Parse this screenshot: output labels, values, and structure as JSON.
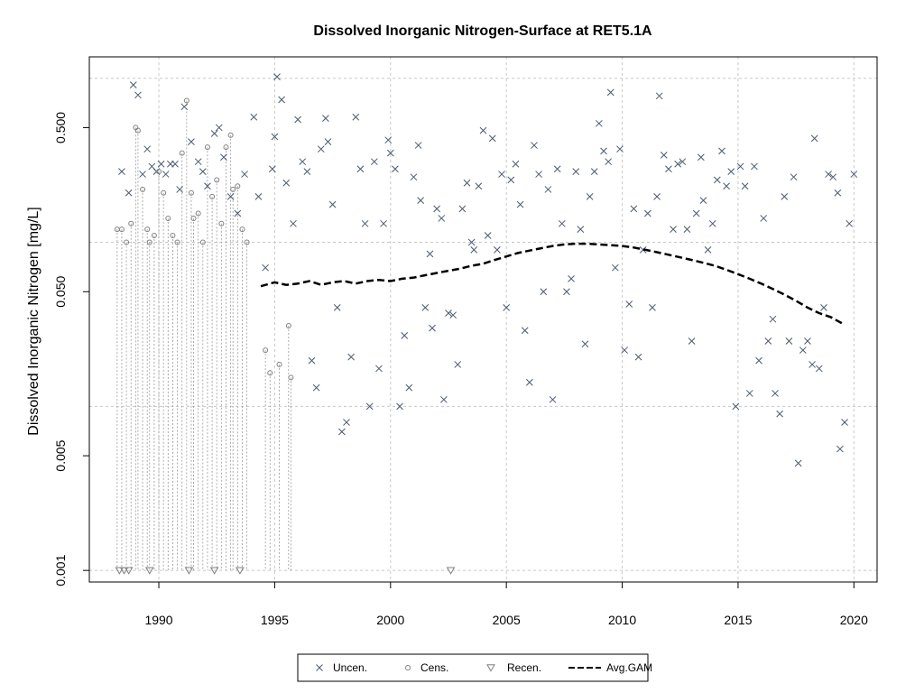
{
  "chart_data": {
    "type": "scatter",
    "title": "Dissolved Inorganic Nitrogen-Surface at RET5.1A",
    "xlabel": "",
    "ylabel": "Dissolved Inorganic Nitrogen [mg/L]",
    "y_scale": "log",
    "xlim": [
      1987.0,
      2021.0
    ],
    "ylim": [
      0.00085,
      1.35
    ],
    "x_ticks": [
      1990,
      1995,
      2000,
      2005,
      2010,
      2015,
      2020
    ],
    "x_tick_labels": [
      "1990",
      "1995",
      "2000",
      "2005",
      "2010",
      "2015",
      "2020"
    ],
    "y_ticks": [
      0.001,
      0.005,
      0.05,
      0.5
    ],
    "y_tick_labels": [
      "0.001",
      "0.005",
      "0.050",
      "0.500"
    ],
    "y_grid_values": [
      0.001,
      0.01,
      0.1,
      1.0
    ],
    "x_grid_values": [
      1990,
      1995,
      2000,
      2005,
      2010,
      2015,
      2020
    ],
    "grid": true,
    "legend_position": "bottom-center",
    "legend": [
      "Uncen.",
      "Cens.",
      "Recen.",
      "Avg.GAM"
    ],
    "series": [
      {
        "name": "Uncen.",
        "marker": "x",
        "color": "#4a5a70",
        "points": [
          [
            1988.4,
            0.27
          ],
          [
            1988.7,
            0.2
          ],
          [
            1988.9,
            0.91
          ],
          [
            1989.1,
            0.79
          ],
          [
            1989.3,
            0.26
          ],
          [
            1989.5,
            0.37
          ],
          [
            1989.7,
            0.29
          ],
          [
            1989.9,
            0.27
          ],
          [
            1990.1,
            0.3
          ],
          [
            1990.3,
            0.26
          ],
          [
            1990.5,
            0.3
          ],
          [
            1990.7,
            0.3
          ],
          [
            1990.9,
            0.21
          ],
          [
            1991.1,
            0.67
          ],
          [
            1991.4,
            0.41
          ],
          [
            1991.7,
            0.31
          ],
          [
            1991.9,
            0.27
          ],
          [
            1992.1,
            0.22
          ],
          [
            1992.4,
            0.46
          ],
          [
            1992.6,
            0.5
          ],
          [
            1992.8,
            0.33
          ],
          [
            1993.1,
            0.19
          ],
          [
            1993.4,
            0.15
          ],
          [
            1993.7,
            0.26
          ],
          [
            1994.1,
            0.58
          ],
          [
            1994.3,
            0.19
          ],
          [
            1994.6,
            0.07
          ],
          [
            1994.9,
            0.28
          ],
          [
            1995.0,
            0.44
          ],
          [
            1995.1,
            1.02
          ],
          [
            1995.3,
            0.74
          ],
          [
            1995.5,
            0.23
          ],
          [
            1995.8,
            0.13
          ],
          [
            1996.0,
            0.56
          ],
          [
            1996.2,
            0.31
          ],
          [
            1996.4,
            0.27
          ],
          [
            1996.6,
            0.019
          ],
          [
            1996.8,
            0.013
          ],
          [
            1997.0,
            0.37
          ],
          [
            1997.2,
            0.57
          ],
          [
            1997.3,
            0.41
          ],
          [
            1997.5,
            0.17
          ],
          [
            1997.7,
            0.04
          ],
          [
            1997.9,
            0.007
          ],
          [
            1998.1,
            0.008
          ],
          [
            1998.3,
            0.02
          ],
          [
            1998.5,
            0.58
          ],
          [
            1998.7,
            0.28
          ],
          [
            1998.9,
            0.13
          ],
          [
            1999.1,
            0.01
          ],
          [
            1999.3,
            0.31
          ],
          [
            1999.5,
            0.017
          ],
          [
            1999.7,
            0.13
          ],
          [
            1999.9,
            0.42
          ],
          [
            2000.0,
            0.35
          ],
          [
            2000.2,
            0.28
          ],
          [
            2000.4,
            0.01
          ],
          [
            2000.6,
            0.027
          ],
          [
            2000.8,
            0.013
          ],
          [
            2001.0,
            0.25
          ],
          [
            2001.2,
            0.39
          ],
          [
            2001.3,
            0.18
          ],
          [
            2001.5,
            0.04
          ],
          [
            2001.7,
            0.085
          ],
          [
            2001.8,
            0.03
          ],
          [
            2002.0,
            0.16
          ],
          [
            2002.2,
            0.14
          ],
          [
            2002.3,
            0.011
          ],
          [
            2002.5,
            0.037
          ],
          [
            2002.7,
            0.036
          ],
          [
            2002.9,
            0.018
          ],
          [
            2003.1,
            0.16
          ],
          [
            2003.3,
            0.23
          ],
          [
            2003.5,
            0.1
          ],
          [
            2003.6,
            0.09
          ],
          [
            2003.8,
            0.22
          ],
          [
            2004.0,
            0.48
          ],
          [
            2004.2,
            0.11
          ],
          [
            2004.4,
            0.43
          ],
          [
            2004.6,
            0.09
          ],
          [
            2004.8,
            0.26
          ],
          [
            2005.0,
            0.04
          ],
          [
            2005.2,
            0.24
          ],
          [
            2005.4,
            0.3
          ],
          [
            2005.6,
            0.17
          ],
          [
            2005.8,
            0.029
          ],
          [
            2006.0,
            0.014
          ],
          [
            2006.2,
            0.39
          ],
          [
            2006.4,
            0.26
          ],
          [
            2006.6,
            0.05
          ],
          [
            2006.8,
            0.21
          ],
          [
            2007.0,
            0.011
          ],
          [
            2007.2,
            0.28
          ],
          [
            2007.4,
            0.13
          ],
          [
            2007.6,
            0.05
          ],
          [
            2007.8,
            0.06
          ],
          [
            2008.0,
            0.27
          ],
          [
            2008.2,
            0.12
          ],
          [
            2008.4,
            0.024
          ],
          [
            2008.6,
            0.19
          ],
          [
            2008.8,
            0.27
          ],
          [
            2009.0,
            0.53
          ],
          [
            2009.2,
            0.36
          ],
          [
            2009.4,
            0.31
          ],
          [
            2009.5,
            0.82
          ],
          [
            2009.7,
            0.07
          ],
          [
            2009.9,
            0.37
          ],
          [
            2010.1,
            0.022
          ],
          [
            2010.3,
            0.042
          ],
          [
            2010.5,
            0.16
          ],
          [
            2010.7,
            0.02
          ],
          [
            2010.9,
            0.09
          ],
          [
            2011.1,
            0.15
          ],
          [
            2011.3,
            0.04
          ],
          [
            2011.5,
            0.19
          ],
          [
            2011.6,
            0.78
          ],
          [
            2011.8,
            0.34
          ],
          [
            2012.0,
            0.28
          ],
          [
            2012.2,
            0.12
          ],
          [
            2012.4,
            0.3
          ],
          [
            2012.6,
            0.31
          ],
          [
            2012.8,
            0.12
          ],
          [
            2013.0,
            0.025
          ],
          [
            2013.2,
            0.15
          ],
          [
            2013.4,
            0.33
          ],
          [
            2013.5,
            0.18
          ],
          [
            2013.7,
            0.09
          ],
          [
            2013.9,
            0.13
          ],
          [
            2014.1,
            0.24
          ],
          [
            2014.3,
            0.36
          ],
          [
            2014.5,
            0.22
          ],
          [
            2014.7,
            0.27
          ],
          [
            2014.9,
            0.01
          ],
          [
            2015.1,
            0.29
          ],
          [
            2015.3,
            0.22
          ],
          [
            2015.5,
            0.012
          ],
          [
            2015.7,
            0.29
          ],
          [
            2015.9,
            0.019
          ],
          [
            2016.1,
            0.14
          ],
          [
            2016.3,
            0.025
          ],
          [
            2016.5,
            0.034
          ],
          [
            2016.6,
            0.012
          ],
          [
            2016.8,
            0.009
          ],
          [
            2017.0,
            0.19
          ],
          [
            2017.2,
            0.025
          ],
          [
            2017.4,
            0.25
          ],
          [
            2017.6,
            0.0045
          ],
          [
            2017.8,
            0.022
          ],
          [
            2018.0,
            0.025
          ],
          [
            2018.2,
            0.018
          ],
          [
            2018.3,
            0.43
          ],
          [
            2018.5,
            0.017
          ],
          [
            2018.7,
            0.04
          ],
          [
            2018.9,
            0.26
          ],
          [
            2019.1,
            0.25
          ],
          [
            2019.3,
            0.2
          ],
          [
            2019.4,
            0.0055
          ],
          [
            2019.6,
            0.008
          ],
          [
            2019.8,
            0.13
          ],
          [
            2020.0,
            0.26
          ]
        ]
      },
      {
        "name": "Cens.",
        "marker": "o",
        "color": "#808080",
        "points": [
          [
            1988.2,
            0.12
          ],
          [
            1988.4,
            0.12
          ],
          [
            1988.6,
            0.1
          ],
          [
            1988.8,
            0.13
          ],
          [
            1989.0,
            0.5
          ],
          [
            1989.1,
            0.48
          ],
          [
            1989.3,
            0.21
          ],
          [
            1989.5,
            0.12
          ],
          [
            1989.6,
            0.1
          ],
          [
            1989.8,
            0.11
          ],
          [
            1990.0,
            0.27
          ],
          [
            1990.2,
            0.2
          ],
          [
            1990.4,
            0.14
          ],
          [
            1990.6,
            0.11
          ],
          [
            1990.8,
            0.1
          ],
          [
            1991.0,
            0.35
          ],
          [
            1991.2,
            0.73
          ],
          [
            1991.4,
            0.2
          ],
          [
            1991.5,
            0.14
          ],
          [
            1991.7,
            0.15
          ],
          [
            1991.9,
            0.1
          ],
          [
            1992.1,
            0.38
          ],
          [
            1992.3,
            0.19
          ],
          [
            1992.5,
            0.24
          ],
          [
            1992.7,
            0.13
          ],
          [
            1992.9,
            0.38
          ],
          [
            1993.1,
            0.45
          ],
          [
            1993.2,
            0.21
          ],
          [
            1993.4,
            0.22
          ],
          [
            1993.6,
            0.12
          ],
          [
            1993.8,
            0.1
          ],
          [
            1994.6,
            0.022
          ],
          [
            1994.8,
            0.016
          ],
          [
            1995.2,
            0.018
          ],
          [
            1995.6,
            0.031
          ],
          [
            1995.7,
            0.015
          ]
        ]
      },
      {
        "name": "Recen.",
        "marker": "triangle-down",
        "color": "#808080",
        "points": [
          [
            1988.3,
            0.001
          ],
          [
            1988.5,
            0.001
          ],
          [
            1988.7,
            0.001
          ],
          [
            1989.6,
            0.001
          ],
          [
            1991.3,
            0.001
          ],
          [
            1992.4,
            0.001
          ],
          [
            1993.5,
            0.001
          ],
          [
            2002.6,
            0.001
          ]
        ]
      },
      {
        "name": "Avg.GAM",
        "marker": "dashed-line",
        "color": "#000000",
        "points": [
          [
            1994.4,
            0.054
          ],
          [
            1995.0,
            0.057
          ],
          [
            1995.5,
            0.055
          ],
          [
            1996.0,
            0.056
          ],
          [
            1996.5,
            0.058
          ],
          [
            1997.0,
            0.055
          ],
          [
            1997.5,
            0.057
          ],
          [
            1998.0,
            0.058
          ],
          [
            1998.5,
            0.056
          ],
          [
            1999.0,
            0.058
          ],
          [
            1999.5,
            0.059
          ],
          [
            2000.0,
            0.058
          ],
          [
            2000.5,
            0.06
          ],
          [
            2001.0,
            0.061
          ],
          [
            2001.5,
            0.063
          ],
          [
            2002.0,
            0.065
          ],
          [
            2002.5,
            0.067
          ],
          [
            2003.0,
            0.069
          ],
          [
            2003.5,
            0.072
          ],
          [
            2004.0,
            0.074
          ],
          [
            2004.5,
            0.078
          ],
          [
            2005.0,
            0.082
          ],
          [
            2005.5,
            0.086
          ],
          [
            2006.0,
            0.089
          ],
          [
            2006.5,
            0.092
          ],
          [
            2007.0,
            0.095
          ],
          [
            2007.5,
            0.097
          ],
          [
            2008.0,
            0.098
          ],
          [
            2008.5,
            0.098
          ],
          [
            2009.0,
            0.097
          ],
          [
            2009.5,
            0.096
          ],
          [
            2010.0,
            0.095
          ],
          [
            2010.5,
            0.093
          ],
          [
            2011.0,
            0.09
          ],
          [
            2011.5,
            0.087
          ],
          [
            2012.0,
            0.084
          ],
          [
            2012.5,
            0.081
          ],
          [
            2013.0,
            0.078
          ],
          [
            2013.5,
            0.075
          ],
          [
            2014.0,
            0.072
          ],
          [
            2014.5,
            0.068
          ],
          [
            2015.0,
            0.064
          ],
          [
            2015.5,
            0.06
          ],
          [
            2016.0,
            0.056
          ],
          [
            2016.5,
            0.052
          ],
          [
            2017.0,
            0.048
          ],
          [
            2017.5,
            0.044
          ],
          [
            2018.0,
            0.04
          ],
          [
            2018.5,
            0.037
          ],
          [
            2019.0,
            0.035
          ],
          [
            2019.5,
            0.032
          ]
        ]
      }
    ]
  }
}
